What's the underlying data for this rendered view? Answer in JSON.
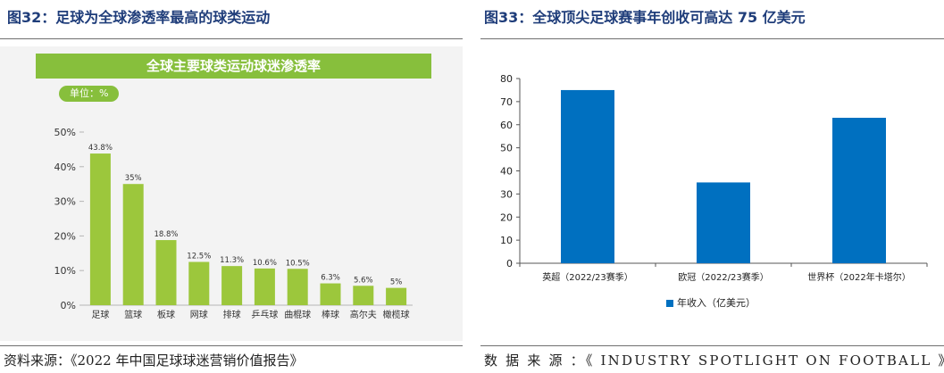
{
  "left_panel": {
    "title": "图32：足球为全球渗透率最高的球类运动",
    "banner": "全球主要球类运动球迷渗透率",
    "unit": "单位：%",
    "source": "资料来源：《2022 年中国足球球迷营销价值报告》"
  },
  "right_panel": {
    "title": "图33：全球顶尖足球赛事年创收可高达 75 亿美元",
    "legend": "年收入（亿美元）",
    "source": "数 据 来 源 ：《 INDUSTRY SPOTLIGHT ON FOOTBALL 》"
  },
  "chart_data": [
    {
      "type": "bar",
      "title": "全球主要球类运动球迷渗透率",
      "categories": [
        "足球",
        "篮球",
        "板球",
        "网球",
        "排球",
        "乒乓球",
        "曲棍球",
        "棒球",
        "高尔夫",
        "橄榄球"
      ],
      "values": [
        43.8,
        35,
        18.8,
        12.5,
        11.3,
        10.6,
        10.5,
        6.3,
        5.6,
        5
      ],
      "data_labels": [
        "43.8%",
        "35%",
        "18.8%",
        "12.5%",
        "11.3%",
        "10.6%",
        "10.5%",
        "6.3%",
        "5.6%",
        "5%"
      ],
      "yticks": [
        "0%",
        "10%",
        "20%",
        "30%",
        "40%",
        "50%"
      ],
      "ylim": [
        0,
        50
      ],
      "unit": "%",
      "color": "#9cc73c",
      "grid": false
    },
    {
      "type": "bar",
      "categories": [
        "英超（2022/23赛季）",
        "欧冠（2022/23赛季）",
        "世界杯（2022年卡塔尔）"
      ],
      "series": [
        {
          "name": "年收入（亿美元）",
          "values": [
            75,
            35,
            63
          ]
        }
      ],
      "yticks": [
        "0",
        "10",
        "20",
        "30",
        "40",
        "50",
        "60",
        "70",
        "80"
      ],
      "ylim": [
        0,
        80
      ],
      "color": "#0070c0",
      "grid": false,
      "legend": "bottom"
    }
  ]
}
